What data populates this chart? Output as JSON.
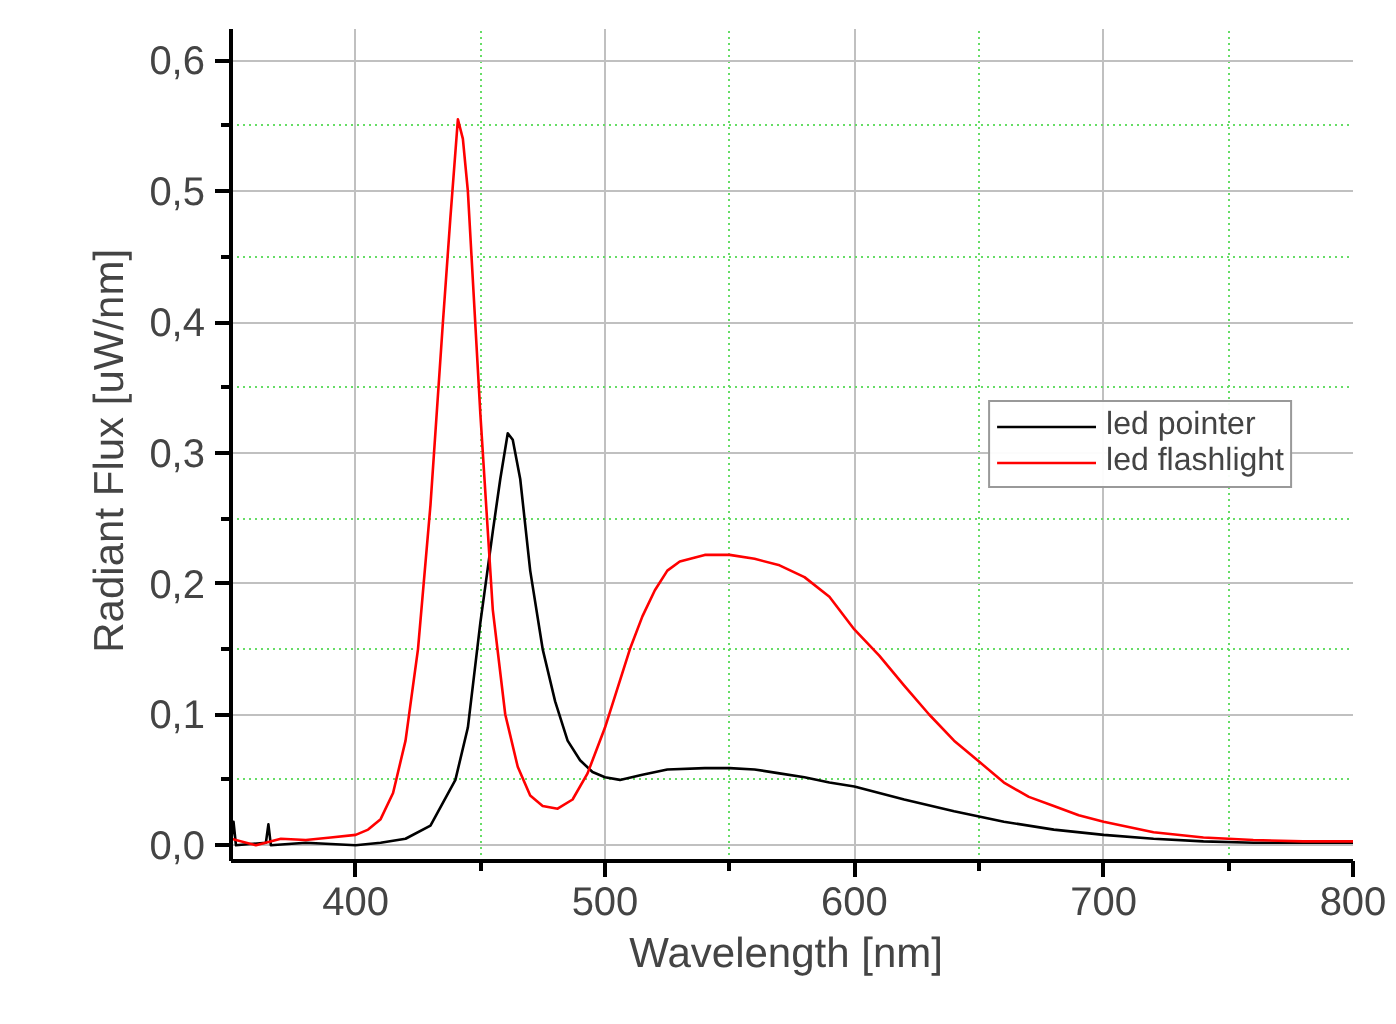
{
  "chart_data": {
    "type": "line",
    "xlabel": "Wavelength  [nm]",
    "ylabel": "Radiant Flux  [uW/nm]",
    "xlim": [
      350,
      800
    ],
    "ylim": [
      -0.012,
      0.624
    ],
    "xticks": [
      {
        "value": 400,
        "label": "400"
      },
      {
        "value": 500,
        "label": "500"
      },
      {
        "value": 600,
        "label": "600"
      },
      {
        "value": 700,
        "label": "700"
      },
      {
        "value": 800,
        "label": "800"
      },
      {
        "value": 450,
        "label": null
      },
      {
        "value": 550,
        "label": null
      },
      {
        "value": 650,
        "label": null
      },
      {
        "value": 750,
        "label": null
      }
    ],
    "yticks": [
      {
        "value": 0,
        "label": "0,0"
      },
      {
        "value": 0.1,
        "label": "0,1"
      },
      {
        "value": 0.2,
        "label": "0,2"
      },
      {
        "value": 0.3,
        "label": "0,3"
      },
      {
        "value": 0.4,
        "label": "0,4"
      },
      {
        "value": 0.5,
        "label": "0,5"
      },
      {
        "value": 0.6,
        "label": "0,6"
      },
      {
        "value": 0.05,
        "label": null
      },
      {
        "value": 0.15,
        "label": null
      },
      {
        "value": 0.25,
        "label": null
      },
      {
        "value": 0.35,
        "label": null
      },
      {
        "value": 0.45,
        "label": null
      },
      {
        "value": 0.55,
        "label": null
      }
    ],
    "grid": true,
    "legend": "right",
    "line_style": "solid",
    "marker": "none",
    "series": [
      {
        "name": "led pointer",
        "color": "#000000",
        "x": [
          350,
          351,
          352,
          364,
          365,
          366,
          380,
          400,
          410,
          420,
          430,
          440,
          445,
          450,
          455,
          458,
          461,
          463,
          466,
          470,
          475,
          480,
          485,
          490,
          495,
          500,
          506,
          515,
          525,
          540,
          550,
          560,
          570,
          580,
          590,
          600,
          620,
          640,
          660,
          680,
          700,
          720,
          740,
          760,
          800
        ],
        "values": [
          0.002,
          0.018,
          0.0,
          0.002,
          0.016,
          0.0,
          0.002,
          0.0,
          0.002,
          0.005,
          0.015,
          0.05,
          0.09,
          0.17,
          0.24,
          0.28,
          0.315,
          0.31,
          0.28,
          0.21,
          0.15,
          0.11,
          0.08,
          0.065,
          0.056,
          0.052,
          0.05,
          0.054,
          0.058,
          0.059,
          0.059,
          0.058,
          0.055,
          0.052,
          0.048,
          0.045,
          0.035,
          0.026,
          0.018,
          0.012,
          0.008,
          0.005,
          0.003,
          0.002,
          0.002
        ]
      },
      {
        "name": "led flashlight",
        "color": "#ff0000",
        "x": [
          350,
          360,
          370,
          380,
          390,
          400,
          405,
          410,
          415,
          420,
          425,
          430,
          435,
          438,
          441,
          443,
          445,
          450,
          455,
          460,
          465,
          470,
          475,
          481,
          487,
          493,
          500,
          505,
          510,
          515,
          520,
          525,
          530,
          540,
          550,
          560,
          570,
          580,
          590,
          600,
          610,
          620,
          630,
          640,
          650,
          660,
          670,
          680,
          690,
          700,
          720,
          740,
          760,
          780,
          800
        ],
        "values": [
          0.005,
          0.0,
          0.005,
          0.004,
          0.006,
          0.008,
          0.012,
          0.02,
          0.04,
          0.08,
          0.15,
          0.26,
          0.4,
          0.48,
          0.555,
          0.54,
          0.5,
          0.33,
          0.18,
          0.1,
          0.06,
          0.038,
          0.03,
          0.028,
          0.035,
          0.055,
          0.09,
          0.12,
          0.15,
          0.175,
          0.195,
          0.21,
          0.217,
          0.222,
          0.222,
          0.219,
          0.214,
          0.205,
          0.19,
          0.165,
          0.145,
          0.122,
          0.1,
          0.08,
          0.064,
          0.048,
          0.037,
          0.03,
          0.023,
          0.018,
          0.01,
          0.006,
          0.004,
          0.003,
          0.003
        ]
      }
    ]
  }
}
